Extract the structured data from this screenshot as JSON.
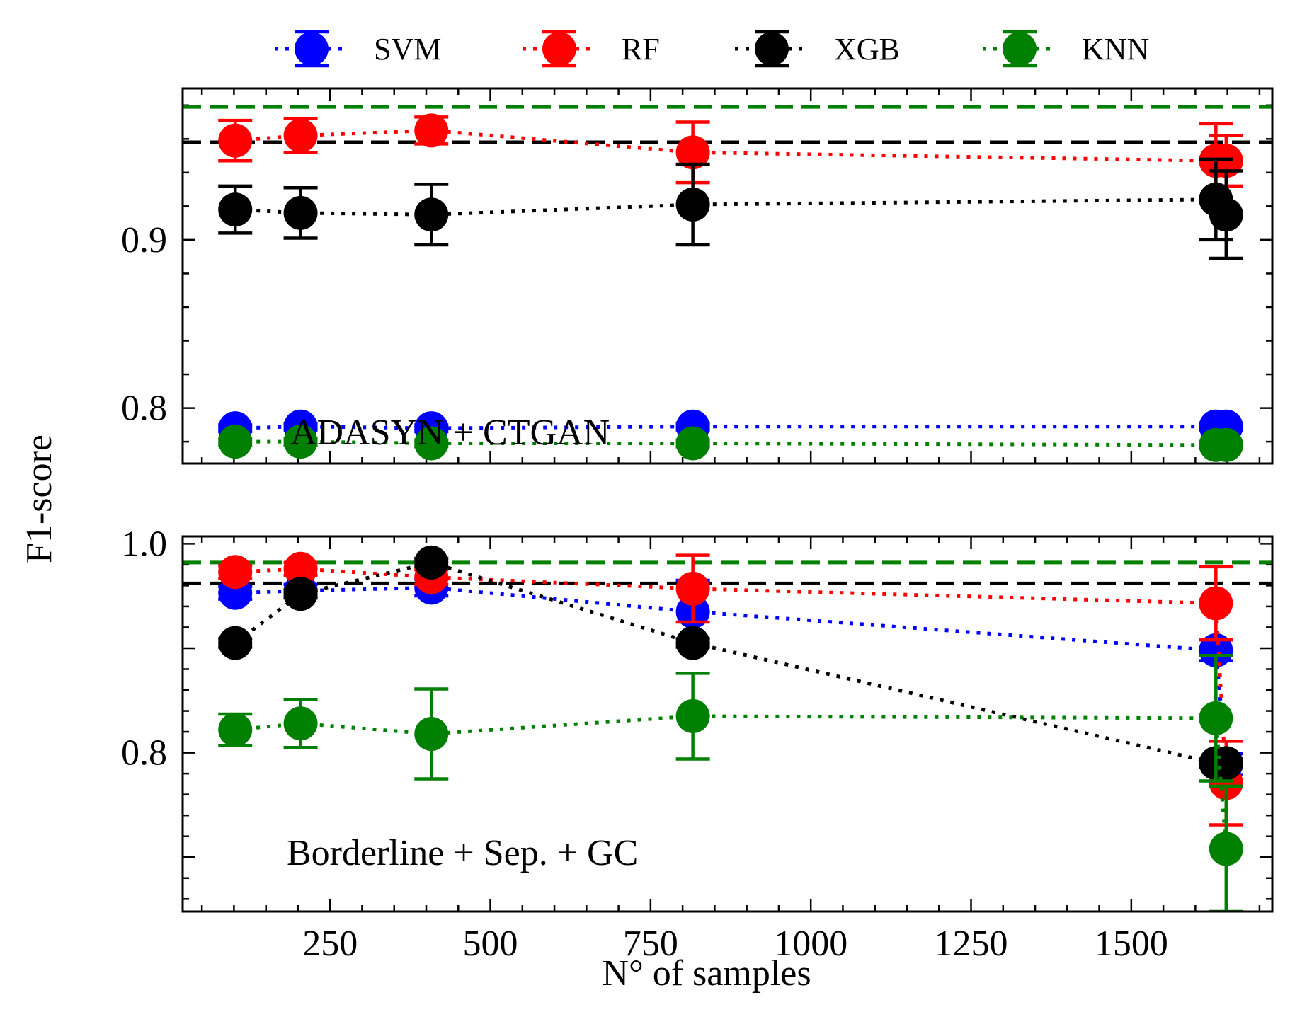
{
  "legend": [
    {
      "name": "SVM",
      "color": "#0000ff"
    },
    {
      "name": "RF",
      "color": "#ff0000"
    },
    {
      "name": "XGB",
      "color": "#000000"
    },
    {
      "name": "KNN",
      "color": "#008000"
    }
  ],
  "axes": {
    "ylabel": "F1-score",
    "xlabel": "N° of samples"
  },
  "chart_data": [
    {
      "type": "scatter",
      "title": "",
      "annotation": "ADASYN + CTGAN",
      "xlabel": "N° of samples",
      "ylabel": "F1-score",
      "xlim": [
        20,
        1720
      ],
      "ylim": [
        0.767,
        0.99
      ],
      "x_ticks": [
        250,
        500,
        750,
        1000,
        1250,
        1500
      ],
      "y_ticks": [
        0.8,
        0.9
      ],
      "y_tick_labels": [
        "0.8",
        "0.9"
      ],
      "tick_labels_x_shown": false,
      "grid": false,
      "reference_lines": [
        {
          "color": "#008000",
          "style": "dashed",
          "y": 0.979
        },
        {
          "color": "#000000",
          "style": "dashed",
          "y": 0.958
        }
      ],
      "series": [
        {
          "name": "SVM",
          "color": "#0000ff",
          "x": [
            102,
            204,
            408,
            816,
            1632,
            1648
          ],
          "y": [
            0.788,
            0.789,
            0.788,
            0.789,
            0.789,
            0.789
          ],
          "err": [
            0.002,
            0.002,
            0.002,
            0.002,
            0.002,
            0.002
          ]
        },
        {
          "name": "RF",
          "color": "#ff0000",
          "x": [
            102,
            204,
            408,
            816,
            1632,
            1648
          ],
          "y": [
            0.959,
            0.962,
            0.965,
            0.952,
            0.947,
            0.947
          ],
          "err": [
            0.012,
            0.01,
            0.008,
            0.018,
            0.022,
            0.015
          ]
        },
        {
          "name": "XGB",
          "color": "#000000",
          "x": [
            102,
            204,
            408,
            816,
            1632,
            1648
          ],
          "y": [
            0.918,
            0.916,
            0.915,
            0.921,
            0.924,
            0.915
          ],
          "err": [
            0.014,
            0.015,
            0.018,
            0.024,
            0.024,
            0.026
          ]
        },
        {
          "name": "KNN",
          "color": "#008000",
          "x": [
            102,
            204,
            408,
            816,
            1632,
            1648
          ],
          "y": [
            0.78,
            0.78,
            0.779,
            0.779,
            0.778,
            0.778
          ],
          "err": [
            0.002,
            0.002,
            0.002,
            0.002,
            0.002,
            0.002
          ]
        }
      ]
    },
    {
      "type": "scatter",
      "title": "",
      "annotation": "Borderline + Sep. + GC",
      "xlabel": "N° of samples",
      "ylabel": "F1-score",
      "xlim": [
        20,
        1720
      ],
      "ylim": [
        0.648,
        1.007
      ],
      "x_ticks": [
        250,
        500,
        750,
        1000,
        1250,
        1500
      ],
      "x_tick_labels": [
        "250",
        "500",
        "750",
        "1000",
        "1250",
        "1500"
      ],
      "y_ticks": [
        0.8,
        1.0
      ],
      "y_tick_labels": [
        "0.8",
        "1.0"
      ],
      "grid": false,
      "reference_lines": [
        {
          "color": "#008000",
          "style": "dashed",
          "y": 0.982
        },
        {
          "color": "#000000",
          "style": "dashed",
          "y": 0.962
        }
      ],
      "series": [
        {
          "name": "SVM",
          "color": "#0000ff",
          "x": [
            102,
            204,
            408,
            816,
            1632,
            1648
          ],
          "y": [
            0.953,
            0.955,
            0.958,
            0.935,
            0.898,
            0.789
          ],
          "err": [
            0.006,
            0.006,
            0.008,
            0.03,
            0.01,
            0.01
          ]
        },
        {
          "name": "RF",
          "color": "#ff0000",
          "x": [
            102,
            204,
            408,
            816,
            1632,
            1648
          ],
          "y": [
            0.973,
            0.976,
            0.968,
            0.957,
            0.943,
            0.771
          ],
          "err": [
            0.006,
            0.006,
            0.007,
            0.032,
            0.035,
            0.04
          ]
        },
        {
          "name": "XGB",
          "color": "#000000",
          "x": [
            102,
            204,
            408,
            816,
            1632,
            1648
          ],
          "y": [
            0.905,
            0.952,
            0.982,
            0.905,
            0.79,
            0.79
          ],
          "err": [
            0.004,
            0.004,
            0.004,
            0.004,
            0.004,
            0.004
          ]
        },
        {
          "name": "KNN",
          "color": "#008000",
          "x": [
            102,
            204,
            408,
            816,
            1632,
            1648
          ],
          "y": [
            0.822,
            0.828,
            0.818,
            0.835,
            0.833,
            0.708
          ],
          "err": [
            0.015,
            0.023,
            0.043,
            0.041,
            0.06,
            0.06
          ]
        }
      ]
    }
  ]
}
